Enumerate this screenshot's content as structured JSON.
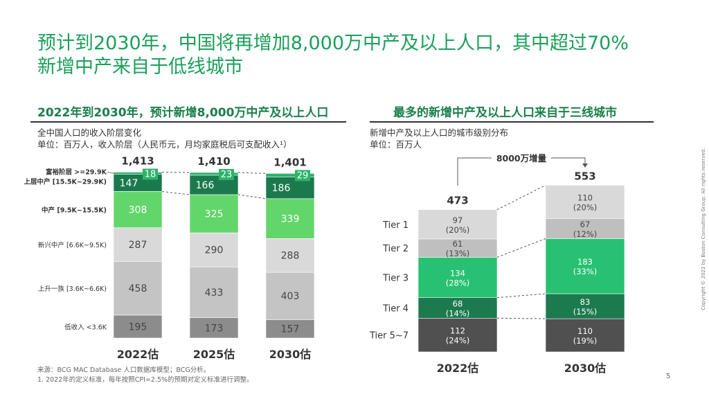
{
  "title": {
    "line1": "预计到2030年，中国将再增加8,000万中产及以上人口，其中超过70%",
    "line2": "新增中产来自于低线城市"
  },
  "left_panel": {
    "title": "2022年到2030年，预计新增8,000万中产及以上人口",
    "subtitle1": "全中国人口的收入阶层变化",
    "subtitle2": "单位：百万人，收入阶层（人民币元，月均家庭税后可支配收入¹）"
  },
  "right_panel": {
    "title": "最多的新增中产及以上人口来自于三线城市",
    "subtitle1": "新增中产及以上人口的城市级别分布",
    "subtitle2": "单位：百万人",
    "annotation": "8000万增量"
  },
  "footnotes": {
    "source": "来源：BCG MAC Database 人口数据库模型；BCG分析。",
    "note1": "1. 2022年的定义标准，每年按照CPI=2.5%的预期对定义标准进行调整。"
  },
  "copyright": "Copyright © 2022 by Boston Consulting Group. All rights reserved.",
  "page_number": "5",
  "colors": {
    "title_green": "#1aa05a",
    "affluent": "#2db36b",
    "upper_middle": "#1b7a4d",
    "middle": "#62d66a",
    "emerging_middle": "#d9d9d9",
    "aspirant": "#c4c4c4",
    "low_income": "#8c8c8c",
    "tier1": "#d9d9d9",
    "tier2": "#bfbfbf",
    "tier3": "#28c172",
    "tier4": "#1c7a4f",
    "tier57": "#505050"
  },
  "chart_data": [
    {
      "type": "bar",
      "stacked": true,
      "categories": [
        "2022估",
        "2025估",
        "2030估"
      ],
      "totals": [
        "1,413",
        "1,410",
        "1,401"
      ],
      "series": [
        {
          "name": "低收入 <3.6K",
          "values": [
            195,
            173,
            157
          ],
          "color": "#8c8c8c"
        },
        {
          "name": "上升一族 [3.6K~6.6K)",
          "values": [
            458,
            433,
            403
          ],
          "color": "#c4c4c4"
        },
        {
          "name": "新兴中产 [6.6K~9.5K)",
          "values": [
            287,
            290,
            288
          ],
          "color": "#d9d9d9"
        },
        {
          "name": "中产 [9.5K~15.5K)",
          "values": [
            308,
            325,
            339
          ],
          "color": "#62d66a"
        },
        {
          "name": "上层中产 [15.5K~29.9K)",
          "values": [
            147,
            166,
            186
          ],
          "color": "#1b7a4d"
        },
        {
          "name": "富裕阶层 >=29.9K",
          "values": [
            18,
            23,
            29
          ],
          "color": "#2db36b"
        }
      ]
    },
    {
      "type": "bar",
      "stacked": true,
      "categories": [
        "2022估",
        "2030估"
      ],
      "totals": [
        "473",
        "553"
      ],
      "series": [
        {
          "name": "Tier 5~7",
          "values": [
            112,
            110
          ],
          "shares": [
            "(24%)",
            "(19%)"
          ],
          "color": "#505050"
        },
        {
          "name": "Tier 4",
          "values": [
            68,
            83
          ],
          "shares": [
            "(14%)",
            "(15%)"
          ],
          "color": "#1c7a4f"
        },
        {
          "name": "Tier 3",
          "values": [
            134,
            183
          ],
          "shares": [
            "(28%)",
            "(33%)"
          ],
          "color": "#28c172"
        },
        {
          "name": "Tier 2",
          "values": [
            61,
            67
          ],
          "shares": [
            "(13%)",
            "(12%)"
          ],
          "color": "#bfbfbf"
        },
        {
          "name": "Tier 1",
          "values": [
            97,
            110
          ],
          "shares": [
            "(20%)",
            "(20%)"
          ],
          "color": "#d9d9d9"
        }
      ]
    }
  ]
}
